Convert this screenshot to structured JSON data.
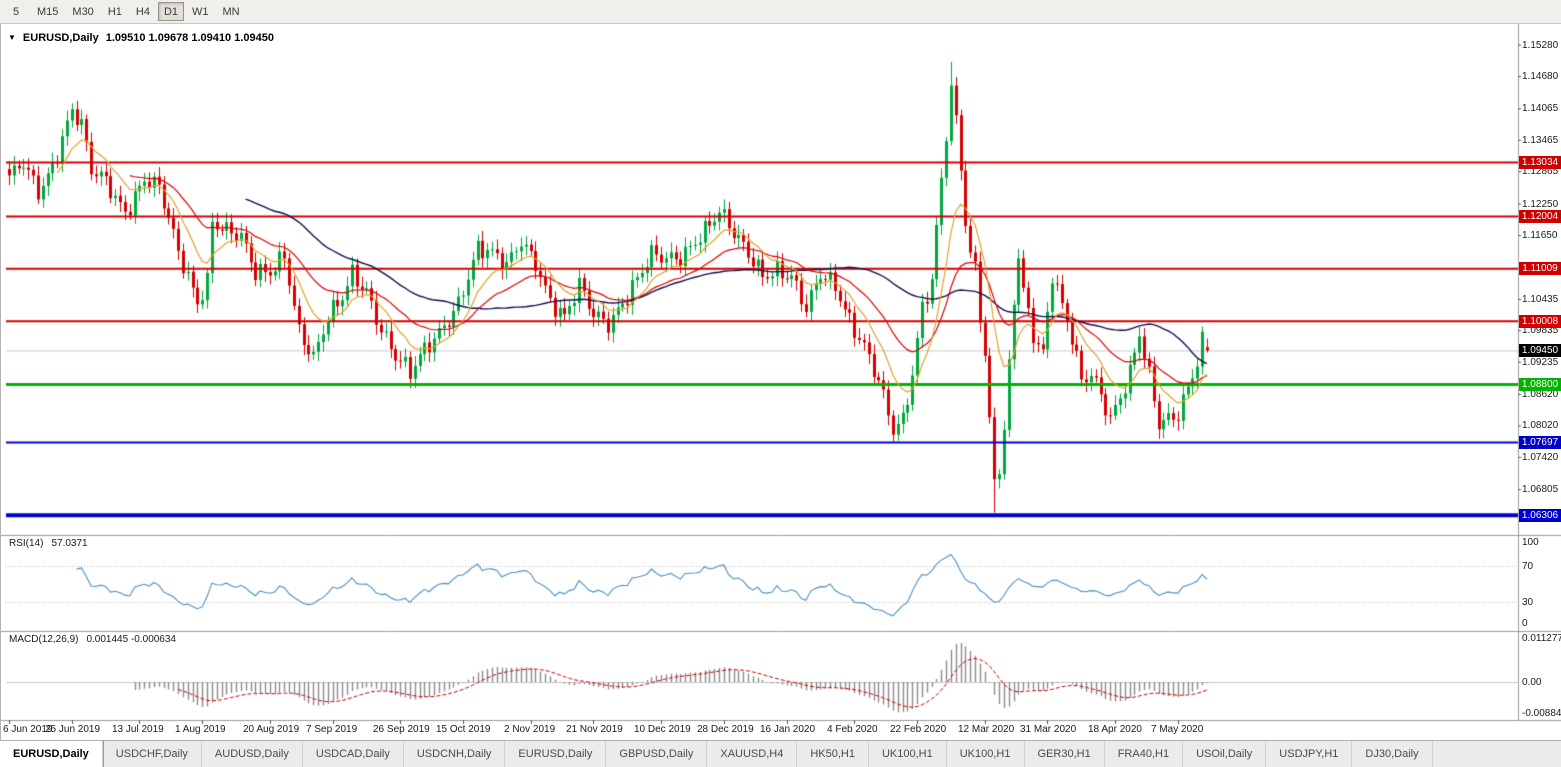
{
  "toolbar": {
    "timeframes": [
      "5",
      "M15",
      "M30",
      "H1",
      "H4",
      "D1",
      "W1",
      "MN"
    ],
    "active": "D1"
  },
  "chart": {
    "symbol_label": "EURUSD,Daily",
    "ohlc_text": "1.09510 1.09678 1.09410 1.09450"
  },
  "rsi": {
    "label": "RSI(14)",
    "value": "57.0371",
    "axis": [
      "100",
      "70",
      "30",
      "0"
    ],
    "levels": [
      70,
      30
    ]
  },
  "macd": {
    "label": "MACD(12,26,9)",
    "values": "0.001445 -0.000634",
    "axis": [
      "0.011277",
      "0.00",
      "-0.008845"
    ]
  },
  "price_axis": {
    "labels": [
      "1.15280",
      "1.14680",
      "1.14065",
      "1.13465",
      "1.12865",
      "1.12250",
      "1.11650",
      "1.10435",
      "1.09835",
      "1.09235",
      "1.08620",
      "1.08020",
      "1.07420",
      "1.06805"
    ],
    "tags": [
      {
        "text": "1.13034",
        "bg": "#d00000"
      },
      {
        "text": "1.12004",
        "bg": "#d00000"
      },
      {
        "text": "1.11009",
        "bg": "#d00000"
      },
      {
        "text": "1.10008",
        "bg": "#d00000"
      },
      {
        "text": "1.09450",
        "bg": "#000000"
      },
      {
        "text": "1.08800",
        "bg": "#00b400"
      },
      {
        "text": "1.07697",
        "bg": "#0000cc"
      },
      {
        "text": "1.06306",
        "bg": "#0000cc"
      }
    ]
  },
  "chart_data": {
    "type": "candlestick",
    "symbol": "EURUSD",
    "timeframe": "Daily",
    "title": "EURUSD,Daily",
    "ylim": [
      1.0597,
      1.1552
    ],
    "num_candles": 249,
    "last_ohlc": {
      "open": 1.0951,
      "high": 1.09678,
      "low": 1.0941,
      "close": 1.0945
    },
    "date_labels": [
      "6 Jun 2019",
      "25 Jun 2019",
      "13 Jul 2019",
      "1 Aug 2019",
      "20 Aug 2019",
      "7 Sep 2019",
      "26 Sep 2019",
      "15 Oct 2019",
      "2 Nov 2019",
      "21 Nov 2019",
      "10 Dec 2019",
      "28 Dec 2019",
      "16 Jan 2020",
      "4 Feb 2020",
      "22 Feb 2020",
      "12 Mar 2020",
      "31 Mar 2020",
      "18 Apr 2020",
      "7 May 2020"
    ],
    "horizontal_levels": [
      {
        "price": 1.13034,
        "color": "#d00000",
        "width": 2
      },
      {
        "price": 1.12004,
        "color": "#d00000",
        "width": 2
      },
      {
        "price": 1.11009,
        "color": "#d00000",
        "width": 2
      },
      {
        "price": 1.10008,
        "color": "#d00000",
        "width": 2
      },
      {
        "price": 1.088,
        "color": "#00b400",
        "width": 3
      },
      {
        "price": 1.07697,
        "color": "#0000cc",
        "width": 2
      },
      {
        "price": 1.06306,
        "color": "#0000cc",
        "width": 4
      }
    ],
    "current_price": 1.0945,
    "price_anchors": [
      [
        0,
        1.1268
      ],
      [
        3,
        1.1305
      ],
      [
        6,
        1.1255
      ],
      [
        9,
        1.13
      ],
      [
        13,
        1.1398
      ],
      [
        15,
        1.1368
      ],
      [
        17,
        1.1282
      ],
      [
        20,
        1.127
      ],
      [
        24,
        1.1215
      ],
      [
        28,
        1.1272
      ],
      [
        31,
        1.125
      ],
      [
        35,
        1.1128
      ],
      [
        39,
        1.1042
      ],
      [
        41,
        1.1085
      ],
      [
        42,
        1.1198
      ],
      [
        45,
        1.1175
      ],
      [
        48,
        1.1155
      ],
      [
        51,
        1.1085
      ],
      [
        54,
        1.1095
      ],
      [
        57,
        1.1135
      ],
      [
        60,
        1.0988
      ],
      [
        63,
        1.0928
      ],
      [
        66,
        1.1
      ],
      [
        69,
        1.1042
      ],
      [
        71,
        1.1092
      ],
      [
        74,
        1.1065
      ],
      [
        77,
        1.099
      ],
      [
        80,
        1.0932
      ],
      [
        83,
        1.0895
      ],
      [
        86,
        1.0942
      ],
      [
        89,
        1.0982
      ],
      [
        93,
        1.1042
      ],
      [
        97,
        1.1138
      ],
      [
        100,
        1.1122
      ],
      [
        103,
        1.1102
      ],
      [
        106,
        1.1158
      ],
      [
        109,
        1.112
      ],
      [
        112,
        1.1042
      ],
      [
        115,
        1.1002
      ],
      [
        118,
        1.1062
      ],
      [
        121,
        1.1012
      ],
      [
        124,
        1.1002
      ],
      [
        127,
        1.1042
      ],
      [
        130,
        1.1082
      ],
      [
        133,
        1.1122
      ],
      [
        136,
        1.1112
      ],
      [
        139,
        1.1122
      ],
      [
        143,
        1.1172
      ],
      [
        147,
        1.1212
      ],
      [
        150,
        1.1162
      ],
      [
        153,
        1.1122
      ],
      [
        156,
        1.1088
      ],
      [
        159,
        1.1105
      ],
      [
        162,
        1.1092
      ],
      [
        165,
        1.1022
      ],
      [
        168,
        1.1082
      ],
      [
        171,
        1.1062
      ],
      [
        174,
        1.1005
      ],
      [
        177,
        1.0962
      ],
      [
        180,
        1.0892
      ],
      [
        183,
        1.0788
      ],
      [
        185,
        1.0802
      ],
      [
        187,
        1.0892
      ],
      [
        189,
        1.1025
      ],
      [
        191,
        1.1082
      ],
      [
        193,
        1.1282
      ],
      [
        195,
        1.1452
      ],
      [
        196,
        1.1388
      ],
      [
        197,
        1.1302
      ],
      [
        198,
        1.1188
      ],
      [
        199,
        1.1122
      ],
      [
        200,
        1.1098
      ],
      [
        201,
        1.1008
      ],
      [
        202,
        1.0922
      ],
      [
        203,
        1.0802
      ],
      [
        204,
        1.0688
      ],
      [
        205,
        1.0722
      ],
      [
        206,
        1.0782
      ],
      [
        207,
        1.0922
      ],
      [
        208,
        1.1042
      ],
      [
        209,
        1.1138
      ],
      [
        210,
        1.1062
      ],
      [
        211,
        1.1028
      ],
      [
        212,
        1.0982
      ],
      [
        214,
        1.0942
      ],
      [
        216,
        1.1088
      ],
      [
        218,
        1.1022
      ],
      [
        220,
        1.0962
      ],
      [
        222,
        1.0882
      ],
      [
        224,
        1.0902
      ],
      [
        226,
        1.0868
      ],
      [
        228,
        1.0822
      ],
      [
        230,
        1.0862
      ],
      [
        232,
        1.0902
      ],
      [
        234,
        1.0972
      ],
      [
        236,
        1.0888
      ],
      [
        238,
        1.0798
      ],
      [
        240,
        1.0812
      ],
      [
        242,
        1.0828
      ],
      [
        244,
        1.0882
      ],
      [
        246,
        1.0932
      ],
      [
        247,
        1.0968
      ],
      [
        248,
        1.0945
      ]
    ],
    "indicators": {
      "moving_averages": [
        {
          "period": 10,
          "color": "#e0a22e"
        },
        {
          "period": 25,
          "color": "#e00000"
        },
        {
          "period": 50,
          "color": "#10104f"
        }
      ],
      "rsi": {
        "period": 14,
        "last": 57.0371,
        "line_color": "#4a90c2"
      },
      "macd": {
        "fast": 12,
        "slow": 26,
        "signal": 9,
        "last_macd": 0.001445,
        "last_signal": -0.000634,
        "hist_color": "#8a8a8a",
        "signal_color": "#d00000"
      }
    },
    "colors": {
      "bull": "#00a83d",
      "bear": "#d40000",
      "current_price_line": "#c8c8c8"
    }
  },
  "tabs": [
    {
      "label": "EURUSD,Daily",
      "active": true
    },
    {
      "label": "USDCHF,Daily"
    },
    {
      "label": "AUDUSD,Daily"
    },
    {
      "label": "USDCAD,Daily"
    },
    {
      "label": "USDCNH,Daily"
    },
    {
      "label": "EURUSD,Daily"
    },
    {
      "label": "GBPUSD,Daily"
    },
    {
      "label": "XAUUSD,H4"
    },
    {
      "label": "HK50,H1"
    },
    {
      "label": "UK100,H1"
    },
    {
      "label": "UK100,H1"
    },
    {
      "label": "GER30,H1"
    },
    {
      "label": "FRA40,H1"
    },
    {
      "label": "USOil,Daily"
    },
    {
      "label": "USDJPY,H1"
    },
    {
      "label": "DJ30,Daily"
    }
  ]
}
